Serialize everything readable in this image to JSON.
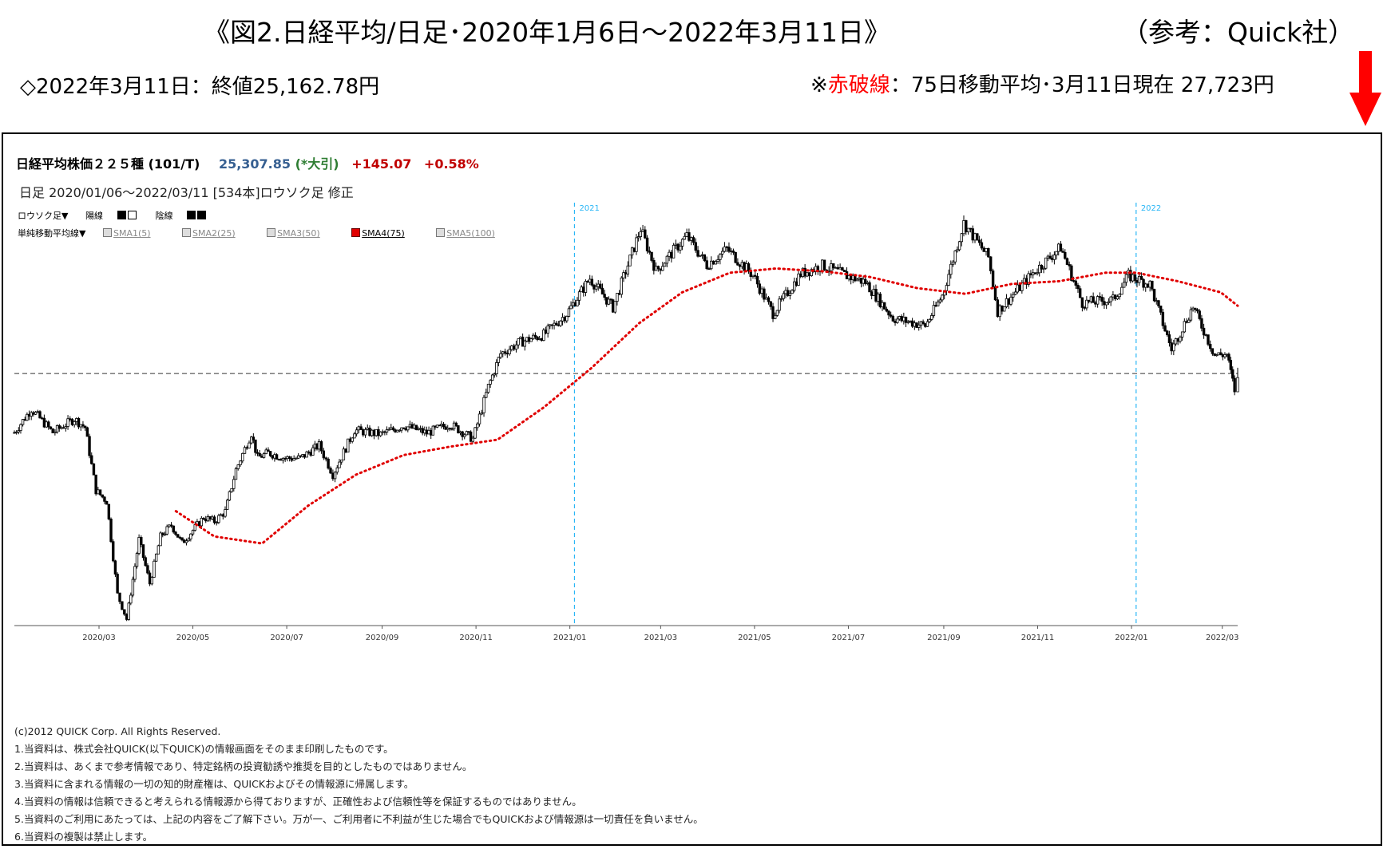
{
  "header": {
    "title": "《図2.日経平均/日足･2020年1月6日～2022年3月11日》",
    "reference": "（参考：Quick社）",
    "close_note": "◇2022年3月11日：終値25,162.78円",
    "ma_note_prefix": "※",
    "ma_note_red": "赤破線",
    "ma_note_rest": "：75日移動平均･3月11日現在  27,723円"
  },
  "panel": {
    "instrument": "日経平均株価２２５種 (101/T)",
    "price": "25,307.85",
    "price_tag": "(*大引)",
    "change": "+145.07",
    "change_pct": "+0.58%",
    "period": "日足  2020/01/06～2022/03/11 [534本]ロウソク足 修正",
    "legend_candle": "ロウソク足▼",
    "legend_up": "陽線",
    "legend_down": "陰線",
    "legend_sma_menu": "単純移動平均線▼",
    "legend_sma": [
      "SMA1(5)",
      "SMA2(25)",
      "SMA3(50)",
      "SMA4(75)",
      "SMA5(100)"
    ]
  },
  "footer": {
    "lines": [
      "(c)2012 QUICK Corp. All Rights Reserved.",
      "1.当資料は、株式会社QUICK(以下QUICK)の情報画面をそのまま印刷したものです。",
      "2.当資料は、あくまで参考情報であり、特定銘柄の投資勧誘や推奨を目的としたものではありません。",
      "3.当資料に含まれる情報の一切の知的財産権は、QUICKおよびその情報源に帰属します。",
      "4.当資料の情報は信頼できると考えられる情報源から得ておりますが、正確性および信頼性等を保証するものではありません。",
      "5.当資料のご利用にあたっては、上記の内容をご了解下さい。万が一、ご利用者に不利益が生じた場合でもQUICKおよび情報源は一切責任を負いません。",
      "6.当資料の複製は禁止します。"
    ]
  },
  "colors": {
    "ma_line": "#e00000",
    "year_divider": "#29b6f6",
    "reference_line": "#333333",
    "arrow": "#ff0000",
    "price_blue": "#365f91",
    "change_red": "#c00000"
  },
  "chart_data": {
    "type": "candlestick",
    "title": "",
    "xlabel": "",
    "ylabel": "",
    "x_ticks": [
      "2020/03",
      "2020/05",
      "2020/07",
      "2020/09",
      "2020/11",
      "2021/01",
      "2021/03",
      "2021/05",
      "2021/07",
      "2021/09",
      "2021/11",
      "2022/01",
      "2022/03"
    ],
    "year_markers": [
      {
        "label": "2021",
        "date": "2021-01-04"
      },
      {
        "label": "2022",
        "date": "2022-01-04"
      }
    ],
    "reference_line": {
      "style": "dashed",
      "value": 25307.85
    },
    "ylim": [
      16350,
      31000
    ],
    "grid": false,
    "price_series": {
      "name": "日経平均株価",
      "points": [
        {
          "date": "2020-01-06",
          "close": 23204
        },
        {
          "date": "2020-01-17",
          "close": 24041
        },
        {
          "date": "2020-01-31",
          "close": 23205
        },
        {
          "date": "2020-02-14",
          "close": 23687
        },
        {
          "date": "2020-02-21",
          "close": 23387
        },
        {
          "date": "2020-02-28",
          "close": 21143
        },
        {
          "date": "2020-03-06",
          "close": 20750
        },
        {
          "date": "2020-03-13",
          "close": 17431
        },
        {
          "date": "2020-03-19",
          "close": 16552
        },
        {
          "date": "2020-03-27",
          "close": 19389
        },
        {
          "date": "2020-04-03",
          "close": 17820
        },
        {
          "date": "2020-04-10",
          "close": 19498
        },
        {
          "date": "2020-04-17",
          "close": 19897
        },
        {
          "date": "2020-04-24",
          "close": 19262
        },
        {
          "date": "2020-05-08",
          "close": 20179
        },
        {
          "date": "2020-05-15",
          "close": 20037
        },
        {
          "date": "2020-05-22",
          "close": 20388
        },
        {
          "date": "2020-05-29",
          "close": 21877
        },
        {
          "date": "2020-06-08",
          "close": 23178
        },
        {
          "date": "2020-06-12",
          "close": 22305
        },
        {
          "date": "2020-06-19",
          "close": 22478
        },
        {
          "date": "2020-06-30",
          "close": 22288
        },
        {
          "date": "2020-07-10",
          "close": 22290
        },
        {
          "date": "2020-07-22",
          "close": 22751
        },
        {
          "date": "2020-07-31",
          "close": 21710
        },
        {
          "date": "2020-08-14",
          "close": 23289
        },
        {
          "date": "2020-08-31",
          "close": 23139
        },
        {
          "date": "2020-09-15",
          "close": 23454
        },
        {
          "date": "2020-09-30",
          "close": 23185
        },
        {
          "date": "2020-10-15",
          "close": 23507
        },
        {
          "date": "2020-10-30",
          "close": 22977
        },
        {
          "date": "2020-11-09",
          "close": 24839
        },
        {
          "date": "2020-11-17",
          "close": 26014
        },
        {
          "date": "2020-11-30",
          "close": 26433
        },
        {
          "date": "2020-12-15",
          "close": 26687
        },
        {
          "date": "2020-12-30",
          "close": 27444
        },
        {
          "date": "2021-01-14",
          "close": 28698
        },
        {
          "date": "2021-01-29",
          "close": 27663
        },
        {
          "date": "2021-02-16",
          "close": 30467
        },
        {
          "date": "2021-02-26",
          "close": 28966
        },
        {
          "date": "2021-03-18",
          "close": 30216
        },
        {
          "date": "2021-03-31",
          "close": 29178
        },
        {
          "date": "2021-04-13",
          "close": 29751
        },
        {
          "date": "2021-04-30",
          "close": 28812
        },
        {
          "date": "2021-05-13",
          "close": 27448
        },
        {
          "date": "2021-05-31",
          "close": 28860
        },
        {
          "date": "2021-06-14",
          "close": 29161
        },
        {
          "date": "2021-06-30",
          "close": 28791
        },
        {
          "date": "2021-07-12",
          "close": 28569
        },
        {
          "date": "2021-07-30",
          "close": 27283
        },
        {
          "date": "2021-08-20",
          "close": 27013
        },
        {
          "date": "2021-08-31",
          "close": 28089
        },
        {
          "date": "2021-09-14",
          "close": 30670
        },
        {
          "date": "2021-09-30",
          "close": 29452
        },
        {
          "date": "2021-10-06",
          "close": 27528
        },
        {
          "date": "2021-10-29",
          "close": 28892
        },
        {
          "date": "2021-11-16",
          "close": 29808
        },
        {
          "date": "2021-11-30",
          "close": 27821
        },
        {
          "date": "2021-12-20",
          "close": 27937
        },
        {
          "date": "2021-12-30",
          "close": 28791
        },
        {
          "date": "2022-01-13",
          "close": 28489
        },
        {
          "date": "2022-01-27",
          "close": 26170
        },
        {
          "date": "2022-02-10",
          "close": 27696
        },
        {
          "date": "2022-02-24",
          "close": 25970
        },
        {
          "date": "2022-03-04",
          "close": 25985
        },
        {
          "date": "2022-03-09",
          "close": 24717
        },
        {
          "date": "2022-03-11",
          "close": 25162.78
        }
      ]
    },
    "ma_series": {
      "name": "SMA4(75)",
      "style": "red-dotted",
      "points": [
        {
          "date": "2020-04-20",
          "value": 20400
        },
        {
          "date": "2020-05-15",
          "value": 19500
        },
        {
          "date": "2020-06-15",
          "value": 19250
        },
        {
          "date": "2020-07-15",
          "value": 20600
        },
        {
          "date": "2020-08-15",
          "value": 21700
        },
        {
          "date": "2020-09-15",
          "value": 22400
        },
        {
          "date": "2020-10-15",
          "value": 22700
        },
        {
          "date": "2020-11-15",
          "value": 22950
        },
        {
          "date": "2020-12-15",
          "value": 24100
        },
        {
          "date": "2021-01-15",
          "value": 25500
        },
        {
          "date": "2021-02-15",
          "value": 27100
        },
        {
          "date": "2021-03-15",
          "value": 28200
        },
        {
          "date": "2021-04-15",
          "value": 28900
        },
        {
          "date": "2021-05-15",
          "value": 29050
        },
        {
          "date": "2021-06-15",
          "value": 28950
        },
        {
          "date": "2021-07-15",
          "value": 28750
        },
        {
          "date": "2021-08-15",
          "value": 28350
        },
        {
          "date": "2021-09-15",
          "value": 28150
        },
        {
          "date": "2021-10-15",
          "value": 28500
        },
        {
          "date": "2021-11-15",
          "value": 28600
        },
        {
          "date": "2021-12-15",
          "value": 28900
        },
        {
          "date": "2022-01-04",
          "value": 28900
        },
        {
          "date": "2022-01-31",
          "value": 28600
        },
        {
          "date": "2022-02-28",
          "value": 28200
        },
        {
          "date": "2022-03-11",
          "value": 27723
        }
      ]
    }
  }
}
